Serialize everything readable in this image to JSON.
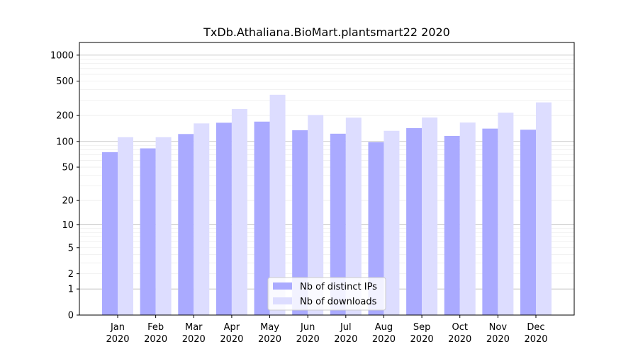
{
  "chart_data": {
    "type": "bar",
    "title": "TxDb.Athaliana.BioMart.plantsmart22 2020",
    "xlabel": "",
    "ylabel": "",
    "scale": "log1p",
    "yticks": [
      0,
      1,
      2,
      5,
      10,
      20,
      50,
      100,
      200,
      500,
      1000
    ],
    "ylim": [
      0,
      1400
    ],
    "grid": true,
    "legend_position": "bottom-center",
    "categories": [
      [
        "Jan",
        "2020"
      ],
      [
        "Feb",
        "2020"
      ],
      [
        "Mar",
        "2020"
      ],
      [
        "Apr",
        "2020"
      ],
      [
        "May",
        "2020"
      ],
      [
        "Jun",
        "2020"
      ],
      [
        "Jul",
        "2020"
      ],
      [
        "Aug",
        "2020"
      ],
      [
        "Sep",
        "2020"
      ],
      [
        "Oct",
        "2020"
      ],
      [
        "Nov",
        "2020"
      ],
      [
        "Dec",
        "2020"
      ]
    ],
    "series": [
      {
        "name": "Nb of distinct IPs",
        "color": "#aaaaff",
        "values": [
          75,
          83,
          122,
          165,
          170,
          135,
          123,
          98,
          143,
          116,
          141,
          137
        ]
      },
      {
        "name": "Nb of downloads",
        "color": "#ddddff",
        "values": [
          112,
          112,
          162,
          238,
          348,
          203,
          189,
          133,
          190,
          166,
          216,
          284
        ]
      }
    ]
  }
}
